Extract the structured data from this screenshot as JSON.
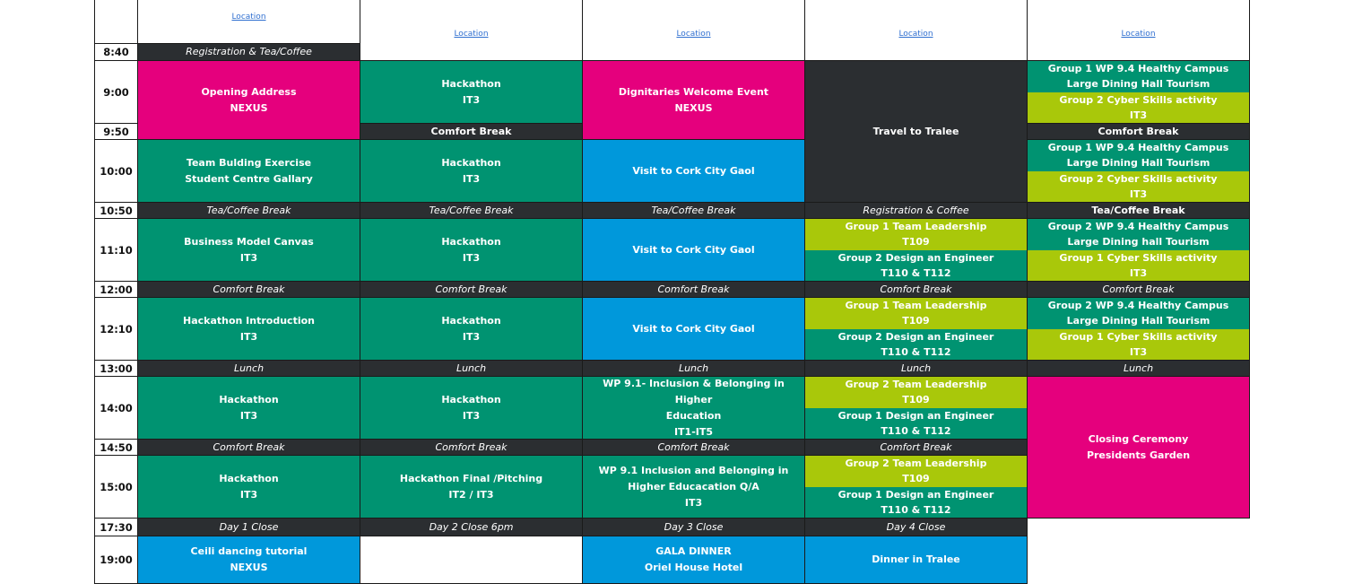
{
  "header": {
    "location_label": "Location"
  },
  "times": [
    "8:40",
    "9:00",
    "9:50",
    "10:00",
    "10:50",
    "11:10",
    "12:00",
    "12:10",
    "13:00",
    "14:00",
    "14:50",
    "15:00",
    "17:30",
    "19:00"
  ],
  "colors": {
    "pink": "#e5007d",
    "green": "#009371",
    "blue": "#0098db",
    "lime": "#a9c80a",
    "dark": "#2b2e31"
  },
  "cells": {
    "d1_registration": "Registration & Tea/Coffee",
    "d1_opening": [
      "Opening Address",
      "NEXUS"
    ],
    "d1_team_building": [
      "Team Bulding Exercise",
      "Student Centre Gallary"
    ],
    "d1_tea_break": "Tea/Coffee Break",
    "d1_business_model": [
      "Business Model Canvas",
      "IT3"
    ],
    "d1_comfort_1": "Comfort Break",
    "d1_hackathon_intro": [
      "Hackathon Introduction",
      "IT3"
    ],
    "d1_lunch": "Lunch",
    "d1_hackathon_1": [
      "Hackathon",
      "IT3"
    ],
    "d1_comfort_2": "Comfort Break",
    "d1_hackathon_2": [
      "Hackathon",
      "IT3"
    ],
    "d1_close": "Day 1 Close",
    "d1_ceili": [
      "Ceili dancing tutorial",
      "NEXUS"
    ],
    "d2_hackathon_1": [
      "Hackathon",
      "IT3"
    ],
    "d2_comfort_bold": "Comfort Break",
    "d2_hackathon_2": [
      "Hackathon",
      "IT3"
    ],
    "d2_tea_break": "Tea/Coffee Break",
    "d2_hackathon_3": [
      "Hackathon",
      "IT3"
    ],
    "d2_comfort_1": "Comfort Break",
    "d2_hackathon_4": [
      "Hackathon",
      "IT3"
    ],
    "d2_lunch": "Lunch",
    "d2_hackathon_5": [
      "Hackathon",
      "IT3"
    ],
    "d2_comfort_2": "Comfort Break",
    "d2_final": [
      "Hackathon Final  /Pitching",
      "IT2 / IT3"
    ],
    "d2_close": "Day 2 Close 6pm",
    "d3_dignitaries": [
      "Dignitaries Welcome Event",
      "NEXUS"
    ],
    "d3_gaol_1": "Visit to Cork City Gaol",
    "d3_tea_break": "Tea/Coffee Break",
    "d3_gaol_2": "Visit to Cork City Gaol",
    "d3_comfort_1": "Comfort Break",
    "d3_gaol_3": "Visit to Cork City Gaol",
    "d3_lunch": "Lunch",
    "d3_wp91": [
      "WP 9.1- Inclusion & Belonging in Higher",
      "Education",
      "IT1-IT5"
    ],
    "d3_comfort_2": "Comfort Break",
    "d3_wp91_qa": [
      "WP 9.1 Inclusion and Belonging in",
      "Higher Educacation Q/A",
      "IT3"
    ],
    "d3_close": "Day 3 Close",
    "d3_gala": [
      "GALA DINNER",
      "Oriel House Hotel"
    ],
    "d4_travel": "Travel to Tralee",
    "d4_registration": "Registration & Coffee",
    "d4_g1_leadership": [
      "Group 1 Team Leadership",
      "T109"
    ],
    "d4_g2_engineer": [
      "Group 2 Design an Engineer",
      "T110 & T112"
    ],
    "d4_comfort_1": "Comfort Break",
    "d4_g1_leadership_b": [
      "Group 1 Team Leadership",
      "T109"
    ],
    "d4_g2_engineer_b": [
      "Group 2 Design an Engineer",
      "T110 & T112"
    ],
    "d4_lunch": "Lunch",
    "d4_g2_leadership": [
      "Group 2 Team Leadership",
      "T109"
    ],
    "d4_g1_engineer": [
      "Group 1 Design an Engineer",
      "T110 & T112"
    ],
    "d4_comfort_2": "Comfort Break",
    "d4_g2_leadership_b": [
      "Group 2 Team Leadership",
      "T109"
    ],
    "d4_g1_engineer_b": [
      "Group 1 Design an Engineer",
      "T110 & T112"
    ],
    "d4_close": "Day 4 Close",
    "d4_dinner": "Dinner in Tralee",
    "d5_g1_wp94": [
      "Group 1 WP 9.4 Healthy Campus",
      "Large Dining Hall Tourism"
    ],
    "d5_g2_cyber": [
      "Group 2 Cyber Skills activity",
      "IT3"
    ],
    "d5_comfort_bold": "Comfort Break",
    "d5_g1_wp94_b": [
      "Group 1 WP 9.4 Healthy Campus",
      "Large Dining Hall Tourism"
    ],
    "d5_g2_cyber_b": [
      "Group 2 Cyber Skills activity",
      "IT3"
    ],
    "d5_tea_break": "Tea/Coffee Break",
    "d5_g2_wp94": [
      "Group 2 WP 9.4 Healthy Campus",
      "Large Dining hall Tourism"
    ],
    "d5_g1_cyber": [
      "Group 1 Cyber Skills activity",
      "IT3"
    ],
    "d5_comfort_1": "Comfort Break",
    "d5_g2_wp94_b": [
      "Group 2 WP 9.4 Healthy Campus",
      "Large Dining Hall Tourism"
    ],
    "d5_g1_cyber_b": [
      "Group 1 Cyber Skills activity",
      "IT3"
    ],
    "d5_lunch": "Lunch",
    "d5_closing": [
      "Closing Ceremony",
      "Presidents Garden"
    ]
  }
}
